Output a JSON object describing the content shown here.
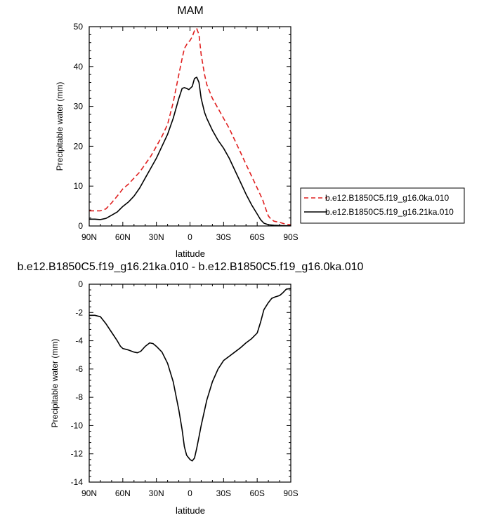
{
  "chart_data": [
    {
      "type": "line",
      "title": "MAM",
      "xlabel": "latitude",
      "ylabel": "Precipitable water (mm)",
      "xlim": [
        90,
        -90
      ],
      "ylim": [
        0,
        50
      ],
      "x_ticks": [
        90,
        60,
        30,
        0,
        -30,
        -60,
        -90
      ],
      "x_tick_labels": [
        "90N",
        "60N",
        "30N",
        "0",
        "30S",
        "60S",
        "90S"
      ],
      "y_ticks": [
        0,
        10,
        20,
        30,
        40,
        50
      ],
      "y_tick_labels": [
        "0",
        "10",
        "20",
        "30",
        "40",
        "50"
      ],
      "grid": false,
      "legend_position": "right",
      "series": [
        {
          "name": "b.e12.B1850C5.f19_g16.0ka.010",
          "color": "#e02020",
          "dash": "dashed",
          "points": [
            [
              90,
              3.8
            ],
            [
              85,
              3.8
            ],
            [
              80,
              3.8
            ],
            [
              75,
              4.3
            ],
            [
              70,
              5.8
            ],
            [
              65,
              7.5
            ],
            [
              60,
              9.3
            ],
            [
              55,
              10.5
            ],
            [
              50,
              12
            ],
            [
              45,
              13.5
            ],
            [
              40,
              15.5
            ],
            [
              35,
              17.5
            ],
            [
              30,
              20
            ],
            [
              25,
              22.5
            ],
            [
              20,
              25.5
            ],
            [
              15,
              31
            ],
            [
              10,
              38
            ],
            [
              7,
              42
            ],
            [
              5,
              44.5
            ],
            [
              2,
              46
            ],
            [
              0,
              46.5
            ],
            [
              -2,
              47.5
            ],
            [
              -4,
              49
            ],
            [
              -6,
              49.5
            ],
            [
              -8,
              48
            ],
            [
              -10,
              43
            ],
            [
              -13,
              38
            ],
            [
              -15,
              35.5
            ],
            [
              -20,
              32
            ],
            [
              -25,
              29.5
            ],
            [
              -30,
              27
            ],
            [
              -35,
              24.5
            ],
            [
              -40,
              21.5
            ],
            [
              -45,
              18.5
            ],
            [
              -50,
              15.5
            ],
            [
              -55,
              12.5
            ],
            [
              -60,
              9.5
            ],
            [
              -65,
              6.5
            ],
            [
              -68,
              4
            ],
            [
              -70,
              2.5
            ],
            [
              -72,
              1.8
            ],
            [
              -75,
              1.2
            ],
            [
              -80,
              0.9
            ],
            [
              -85,
              0.5
            ],
            [
              -90,
              0.3
            ]
          ]
        },
        {
          "name": "b.e12.B1850C5.f19_g16.21ka.010",
          "color": "#000000",
          "dash": "solid",
          "points": [
            [
              90,
              1.7
            ],
            [
              85,
              1.7
            ],
            [
              80,
              1.6
            ],
            [
              75,
              1.9
            ],
            [
              70,
              2.7
            ],
            [
              65,
              3.5
            ],
            [
              60,
              4.9
            ],
            [
              55,
              6
            ],
            [
              50,
              7.5
            ],
            [
              45,
              9.5
            ],
            [
              40,
              12
            ],
            [
              35,
              14.5
            ],
            [
              30,
              17
            ],
            [
              25,
              20
            ],
            [
              20,
              23
            ],
            [
              15,
              27
            ],
            [
              10,
              32
            ],
            [
              7,
              34.5
            ],
            [
              5,
              34.7
            ],
            [
              3,
              34.5
            ],
            [
              1,
              34.2
            ],
            [
              -2,
              35
            ],
            [
              -4,
              37
            ],
            [
              -6,
              37.3
            ],
            [
              -8,
              36
            ],
            [
              -10,
              32
            ],
            [
              -13,
              28.5
            ],
            [
              -15,
              27
            ],
            [
              -20,
              24
            ],
            [
              -25,
              21.5
            ],
            [
              -30,
              19.5
            ],
            [
              -35,
              17
            ],
            [
              -40,
              14
            ],
            [
              -45,
              11
            ],
            [
              -50,
              8
            ],
            [
              -55,
              5.3
            ],
            [
              -60,
              3
            ],
            [
              -63,
              1.6
            ],
            [
              -66,
              0.7
            ],
            [
              -70,
              0.3
            ],
            [
              -75,
              0.15
            ],
            [
              -80,
              0.1
            ],
            [
              -85,
              0.05
            ],
            [
              -90,
              0.05
            ]
          ]
        }
      ]
    },
    {
      "type": "line",
      "title": "b.e12.B1850C5.f19_g16.21ka.010 - b.e12.B1850C5.f19_g16.0ka.010",
      "xlabel": "latitude",
      "ylabel": "Precipitable water (mm)",
      "xlim": [
        90,
        -90
      ],
      "ylim": [
        -14,
        0
      ],
      "x_ticks": [
        90,
        60,
        30,
        0,
        -30,
        -60,
        -90
      ],
      "x_tick_labels": [
        "90N",
        "60N",
        "30N",
        "0",
        "30S",
        "60S",
        "90S"
      ],
      "y_ticks": [
        -14,
        -12,
        -10,
        -8,
        -6,
        -4,
        -2,
        0
      ],
      "y_tick_labels": [
        "-14",
        "-12",
        "-10",
        "-8",
        "-6",
        "-4",
        "-2",
        "0"
      ],
      "grid": false,
      "series": [
        {
          "color": "#000000",
          "dash": "solid",
          "points": [
            [
              90,
              -2.2
            ],
            [
              85,
              -2.2
            ],
            [
              80,
              -2.3
            ],
            [
              75,
              -2.8
            ],
            [
              70,
              -3.4
            ],
            [
              65,
              -4
            ],
            [
              62,
              -4.4
            ],
            [
              60,
              -4.55
            ],
            [
              55,
              -4.65
            ],
            [
              50,
              -4.8
            ],
            [
              47,
              -4.85
            ],
            [
              44,
              -4.75
            ],
            [
              40,
              -4.4
            ],
            [
              36,
              -4.15
            ],
            [
              33,
              -4.2
            ],
            [
              30,
              -4.4
            ],
            [
              25,
              -4.8
            ],
            [
              20,
              -5.6
            ],
            [
              15,
              -6.9
            ],
            [
              10,
              -8.9
            ],
            [
              7,
              -10.3
            ],
            [
              5,
              -11.5
            ],
            [
              3,
              -12.1
            ],
            [
              0,
              -12.4
            ],
            [
              -2,
              -12.5
            ],
            [
              -4,
              -12.3
            ],
            [
              -6,
              -11.6
            ],
            [
              -8,
              -10.8
            ],
            [
              -10,
              -10
            ],
            [
              -15,
              -8.2
            ],
            [
              -20,
              -6.9
            ],
            [
              -25,
              -6
            ],
            [
              -30,
              -5.4
            ],
            [
              -35,
              -5.1
            ],
            [
              -40,
              -4.8
            ],
            [
              -45,
              -4.5
            ],
            [
              -50,
              -4.15
            ],
            [
              -55,
              -3.85
            ],
            [
              -60,
              -3.45
            ],
            [
              -63,
              -2.7
            ],
            [
              -66,
              -1.8
            ],
            [
              -70,
              -1.3
            ],
            [
              -73,
              -1
            ],
            [
              -76,
              -0.9
            ],
            [
              -80,
              -0.8
            ],
            [
              -83,
              -0.6
            ],
            [
              -86,
              -0.35
            ],
            [
              -90,
              -0.3
            ]
          ]
        }
      ]
    }
  ]
}
